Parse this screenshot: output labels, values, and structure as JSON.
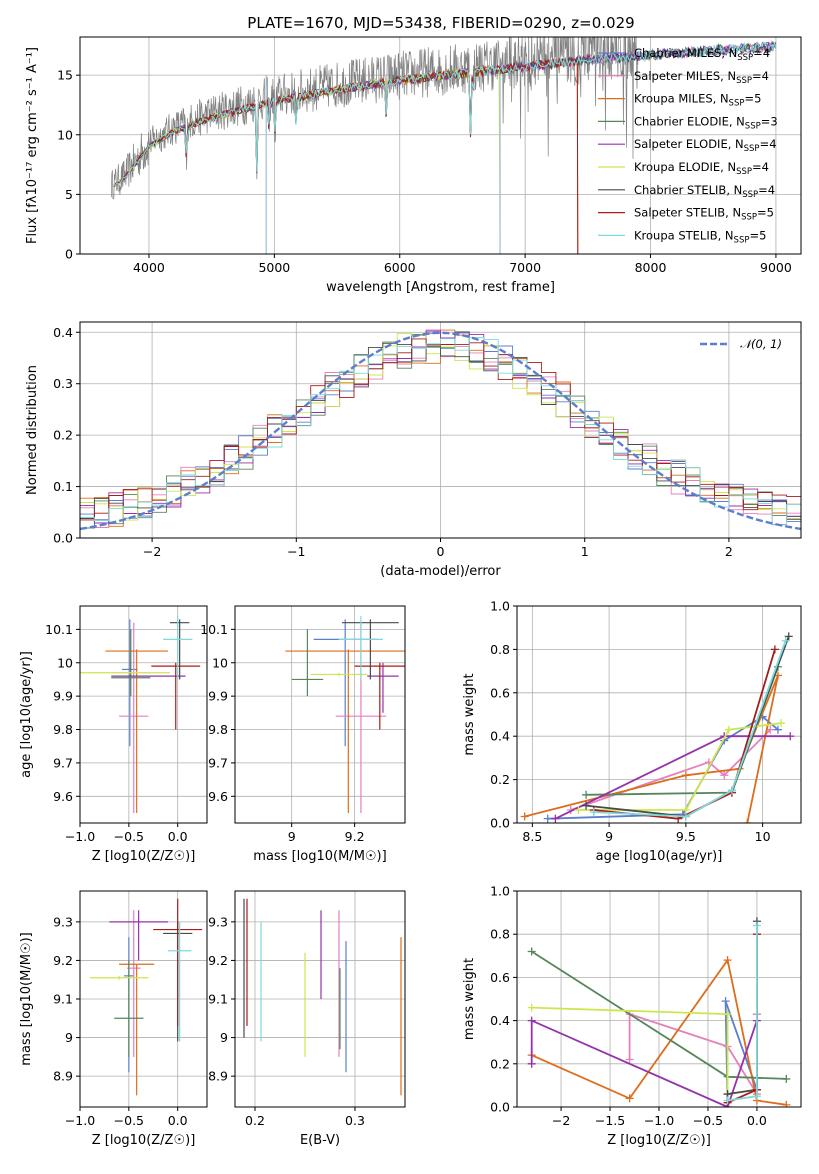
{
  "title": "PLATE=1670, MJD=53438, FIBERID=0290, z=0.029",
  "models": [
    {
      "name": "Chabrier MILES, N",
      "sub": "SSP",
      "suffix": "=4",
      "color": "#5b7fce"
    },
    {
      "name": "Salpeter MILES, N",
      "sub": "SSP",
      "suffix": "=4",
      "color": "#e77fbd"
    },
    {
      "name": "Kroupa MILES, N",
      "sub": "SSP",
      "suffix": "=5",
      "color": "#dd6d1d"
    },
    {
      "name": "Chabrier ELODIE, N",
      "sub": "SSP",
      "suffix": "=3",
      "color": "#55875a"
    },
    {
      "name": "Salpeter ELODIE, N",
      "sub": "SSP",
      "suffix": "=4",
      "color": "#9532ab"
    },
    {
      "name": "Kroupa ELODIE, N",
      "sub": "SSP",
      "suffix": "=4",
      "color": "#cde64e"
    },
    {
      "name": "Chabrier STELIB, N",
      "sub": "SSP",
      "suffix": "=4",
      "color": "#4a4a4a"
    },
    {
      "name": "Salpeter STELIB, N",
      "sub": "SSP",
      "suffix": "=5",
      "color": "#a81c1c"
    },
    {
      "name": "Kroupa STELIB, N",
      "sub": "SSP",
      "suffix": "=5",
      "color": "#7ed9db"
    }
  ],
  "chart_data": [
    {
      "id": "spectrum",
      "type": "line",
      "xlabel": "wavelength [Angstrom, rest frame]",
      "ylabel": "Flux [fλ10⁻¹⁷ erg cm⁻² s⁻¹ A⁻¹]",
      "xlim": [
        3450,
        9200
      ],
      "ylim": [
        0,
        18.2
      ],
      "xticks": [
        4000,
        5000,
        6000,
        7000,
        8000,
        9000
      ],
      "yticks": [
        0,
        5,
        10,
        15
      ],
      "observed_color": "#808080",
      "continuum": {
        "x": [
          3700,
          3800,
          4000,
          4200,
          4500,
          5000,
          5500,
          6000,
          6500,
          7000,
          7500,
          8000,
          8500,
          9000
        ],
        "y": [
          5.8,
          6.5,
          9.3,
          10.6,
          11.8,
          13.2,
          14.2,
          15.0,
          15.6,
          16.2,
          16.8,
          17.2,
          17.6,
          17.9
        ]
      },
      "model_end_x": [
        9000,
        9000,
        7420,
        9000,
        9000,
        6800,
        9000,
        7420,
        9000
      ]
    },
    {
      "id": "residuals",
      "type": "histogram",
      "xlabel": "(data-model)/error",
      "ylabel": "Normed distribution",
      "xlim": [
        -2.5,
        2.5
      ],
      "ylim": [
        0,
        0.42
      ],
      "xticks": [
        -2,
        -1,
        0,
        1,
        2
      ],
      "yticks": [
        0.0,
        0.1,
        0.2,
        0.3,
        0.4
      ],
      "bin_width": 0.1,
      "reference": {
        "name": "𝒩(0, 1)",
        "color": "#5b7fce",
        "dashed": true
      }
    },
    {
      "id": "age_vs_Z",
      "type": "scatter",
      "xlabel": "Z [log10(Z/Z☉)]",
      "ylabel": "age  [log10(age/yr)]",
      "xlim": [
        -1.0,
        0.3
      ],
      "ylim": [
        9.52,
        10.17
      ],
      "xticks": [
        -1.0,
        -0.5,
        0.0
      ],
      "yticks": [
        9.6,
        9.7,
        9.8,
        9.9,
        10.0,
        10.1
      ],
      "points": [
        {
          "x": -0.49,
          "y": 9.98,
          "xerr": 0.08,
          "ylo": 9.75,
          "yhi": 10.13
        },
        {
          "x": -0.45,
          "y": 9.84,
          "xerr": 0.15,
          "ylo": 9.55,
          "yhi": 10.12
        },
        {
          "x": -0.42,
          "y": 10.035,
          "xerr": 0.32,
          "ylo": 9.55,
          "yhi": 10.04
        },
        {
          "x": -0.48,
          "y": 9.955,
          "xerr": 0.2,
          "ylo": 9.9,
          "yhi": 10.1
        },
        {
          "x": -0.3,
          "y": 9.96,
          "xerr": 0.38,
          "ylo": 9.96,
          "yhi": 9.96
        },
        {
          "x": -0.55,
          "y": 9.97,
          "xerr": 0.47,
          "ylo": 9.97,
          "yhi": 9.97
        },
        {
          "x": 0.02,
          "y": 10.12,
          "xerr": 0.1,
          "ylo": 9.95,
          "yhi": 10.13
        },
        {
          "x": -0.02,
          "y": 9.99,
          "xerr": 0.25,
          "ylo": 9.8,
          "yhi": 10.0
        },
        {
          "x": 0.0,
          "y": 10.07,
          "xerr": 0.15,
          "ylo": 9.95,
          "yhi": 10.14
        }
      ]
    },
    {
      "id": "age_vs_mass",
      "type": "scatter",
      "xlabel": "mass [log10(M/M☉)]",
      "ylabel": "",
      "xlim": [
        8.82,
        9.36
      ],
      "ylim": [
        9.52,
        10.17
      ],
      "xticks": [
        9.0,
        9.2
      ],
      "yticks": [
        9.6,
        9.7,
        9.8,
        9.9,
        10.0,
        10.1
      ],
      "points": [
        {
          "x": 9.17,
          "y": 10.07,
          "xerr": 0.1,
          "ylo": 9.75,
          "yhi": 10.13
        },
        {
          "x": 9.22,
          "y": 9.84,
          "xerr": 0.08,
          "ylo": 9.55,
          "yhi": 10.12
        },
        {
          "x": 9.18,
          "y": 10.035,
          "xerr": 0.2,
          "ylo": 9.55,
          "yhi": 10.04
        },
        {
          "x": 9.05,
          "y": 9.95,
          "xerr": 0.05,
          "ylo": 9.9,
          "yhi": 10.1
        },
        {
          "x": 9.29,
          "y": 9.96,
          "xerr": 0.05,
          "ylo": 9.85,
          "yhi": 10.0
        },
        {
          "x": 9.15,
          "y": 9.965,
          "xerr": 0.09,
          "ylo": 9.96,
          "yhi": 9.97
        },
        {
          "x": 9.25,
          "y": 10.12,
          "xerr": 0.09,
          "ylo": 9.95,
          "yhi": 10.13
        },
        {
          "x": 9.28,
          "y": 9.99,
          "xerr": 0.08,
          "ylo": 9.8,
          "yhi": 10.0
        },
        {
          "x": 9.22,
          "y": 10.07,
          "xerr": 0.07,
          "ylo": 9.95,
          "yhi": 10.14
        }
      ]
    },
    {
      "id": "weight_vs_age",
      "type": "line",
      "xlabel": "age  [log10(age/yr)]",
      "ylabel": "mass weight",
      "xlim": [
        8.4,
        10.25
      ],
      "ylim": [
        0,
        1.0
      ],
      "xticks": [
        8.5,
        9.0,
        9.5,
        10.0
      ],
      "yticks": [
        0.0,
        0.2,
        0.4,
        0.6,
        0.8,
        1.0
      ],
      "series": [
        {
          "x": [
            8.6,
            9.48,
            9.75,
            10.0,
            10.1
          ],
          "y": [
            0.02,
            0.04,
            0.38,
            0.49,
            0.43
          ]
        },
        {
          "x": [
            8.75,
            9.65,
            9.75,
            10.05
          ],
          "y": [
            0.06,
            0.28,
            0.22,
            0.43
          ]
        },
        {
          "x": [
            8.45,
            9.5,
            9.85,
            10.1,
            9.9
          ],
          "y": [
            0.03,
            0.22,
            0.25,
            0.68,
            0.0
          ]
        },
        {
          "x": [
            8.85,
            9.8,
            10.1
          ],
          "y": [
            0.13,
            0.14,
            0.72
          ]
        },
        {
          "x": [
            8.65,
            9.75,
            10.18
          ],
          "y": [
            0.02,
            0.4,
            0.4
          ]
        },
        {
          "x": [
            8.8,
            9.5,
            9.78,
            10.12
          ],
          "y": [
            0.06,
            0.06,
            0.43,
            0.46
          ]
        },
        {
          "x": [
            8.85,
            9.5,
            9.8,
            10.17
          ],
          "y": [
            0.08,
            0.03,
            0.15,
            0.86
          ]
        },
        {
          "x": [
            8.9,
            9.45,
            9.8,
            10.08
          ],
          "y": [
            0.06,
            0.02,
            0.14,
            0.8
          ]
        },
        {
          "x": [
            8.9,
            9.5,
            9.8,
            10.15
          ],
          "y": [
            0.05,
            0.03,
            0.15,
            0.84
          ]
        }
      ]
    },
    {
      "id": "mass_vs_Z",
      "type": "scatter",
      "xlabel": "Z [log10(Z/Z☉)]",
      "ylabel": "mass [log10(M/M☉)]",
      "xlim": [
        -1.0,
        0.3
      ],
      "ylim": [
        8.82,
        9.38
      ],
      "xticks": [
        -1.0,
        -0.5,
        0.0
      ],
      "yticks": [
        8.9,
        9.0,
        9.1,
        9.2,
        9.3
      ],
      "points": [
        {
          "x": -0.5,
          "y": 9.16,
          "xerr": 0.05,
          "ylo": 8.91,
          "yhi": 9.26
        },
        {
          "x": -0.45,
          "y": 9.18,
          "xerr": 0.07,
          "ylo": 8.95,
          "yhi": 9.33
        },
        {
          "x": -0.42,
          "y": 9.19,
          "xerr": 0.18,
          "ylo": 8.85,
          "yhi": 9.19
        },
        {
          "x": -0.5,
          "y": 9.05,
          "xerr": 0.15,
          "ylo": 8.95,
          "yhi": 9.2
        },
        {
          "x": -0.4,
          "y": 9.3,
          "xerr": 0.3,
          "ylo": 9.2,
          "yhi": 9.33
        },
        {
          "x": -0.6,
          "y": 9.155,
          "xerr": 0.3,
          "ylo": 9.15,
          "yhi": 9.16
        },
        {
          "x": 0.0,
          "y": 9.27,
          "xerr": 0.15,
          "ylo": 8.99,
          "yhi": 9.3
        },
        {
          "x": 0.0,
          "y": 9.28,
          "xerr": 0.25,
          "ylo": 9.03,
          "yhi": 9.36
        },
        {
          "x": 0.02,
          "y": 9.225,
          "xerr": 0.12,
          "ylo": 8.99,
          "yhi": 9.3
        }
      ]
    },
    {
      "id": "mass_vs_EBV",
      "type": "scatter",
      "xlabel": "E(B-V)",
      "ylabel": "",
      "xlim": [
        0.18,
        0.35
      ],
      "ylim": [
        8.82,
        9.38
      ],
      "xticks": [
        0.2,
        0.3
      ],
      "yticks": [
        8.9,
        9.0,
        9.1,
        9.2,
        9.3
      ],
      "points": [
        {
          "x": 0.291,
          "y": 9.15,
          "ylo": 8.91,
          "yhi": 9.25
        },
        {
          "x": 0.284,
          "y": 9.15,
          "ylo": 8.95,
          "yhi": 9.33
        },
        {
          "x": 0.346,
          "y": 9.05,
          "ylo": 8.85,
          "yhi": 9.26
        },
        {
          "x": 0.285,
          "y": 9.1,
          "ylo": 8.97,
          "yhi": 9.18
        },
        {
          "x": 0.266,
          "y": 9.2,
          "ylo": 9.1,
          "yhi": 9.33
        },
        {
          "x": 0.25,
          "y": 9.1,
          "ylo": 8.95,
          "yhi": 9.22
        },
        {
          "x": 0.189,
          "y": 9.2,
          "ylo": 9.0,
          "yhi": 9.36
        },
        {
          "x": 0.192,
          "y": 9.2,
          "ylo": 9.03,
          "yhi": 9.36
        },
        {
          "x": 0.206,
          "y": 9.15,
          "ylo": 8.99,
          "yhi": 9.3
        }
      ]
    },
    {
      "id": "weight_vs_Z",
      "type": "line",
      "xlabel": "Z [log10(Z/Z☉)]",
      "ylabel": "mass weight",
      "xlim": [
        -2.45,
        0.45
      ],
      "ylim": [
        0,
        1.0
      ],
      "xticks": [
        -2.0,
        -1.5,
        -1.0,
        -0.5,
        0.0
      ],
      "yticks": [
        0.0,
        0.2,
        0.4,
        0.6,
        0.8,
        1.0
      ],
      "series": [
        {
          "x": [
            -0.3,
            -0.32,
            0.0,
            0.0
          ],
          "y": [
            0.0,
            0.49,
            0.08,
            0.43
          ]
        },
        {
          "x": [
            -1.3,
            -1.3,
            -0.3,
            0.0,
            0.0
          ],
          "y": [
            0.22,
            0.43,
            0.28,
            0.06,
            0.43
          ]
        },
        {
          "x": [
            -2.3,
            -1.3,
            -0.3,
            0.0,
            0.3
          ],
          "y": [
            0.24,
            0.04,
            0.68,
            0.03,
            0.01
          ]
        },
        {
          "x": [
            -2.3,
            -0.3,
            0.3
          ],
          "y": [
            0.72,
            0.14,
            0.13
          ]
        },
        {
          "x": [
            -2.3,
            -2.3,
            -0.3,
            0.0
          ],
          "y": [
            0.2,
            0.4,
            0.0,
            0.4
          ]
        },
        {
          "x": [
            -2.3,
            -0.3,
            -0.3
          ],
          "y": [
            0.46,
            0.43,
            0.06
          ]
        },
        {
          "x": [
            -0.3,
            0.0,
            0.0
          ],
          "y": [
            0.06,
            0.08,
            0.86
          ]
        },
        {
          "x": [
            -0.3,
            0.0,
            0.0
          ],
          "y": [
            0.02,
            0.08,
            0.8
          ]
        },
        {
          "x": [
            -0.3,
            0.0,
            0.0
          ],
          "y": [
            0.03,
            0.05,
            0.84
          ]
        }
      ]
    }
  ]
}
